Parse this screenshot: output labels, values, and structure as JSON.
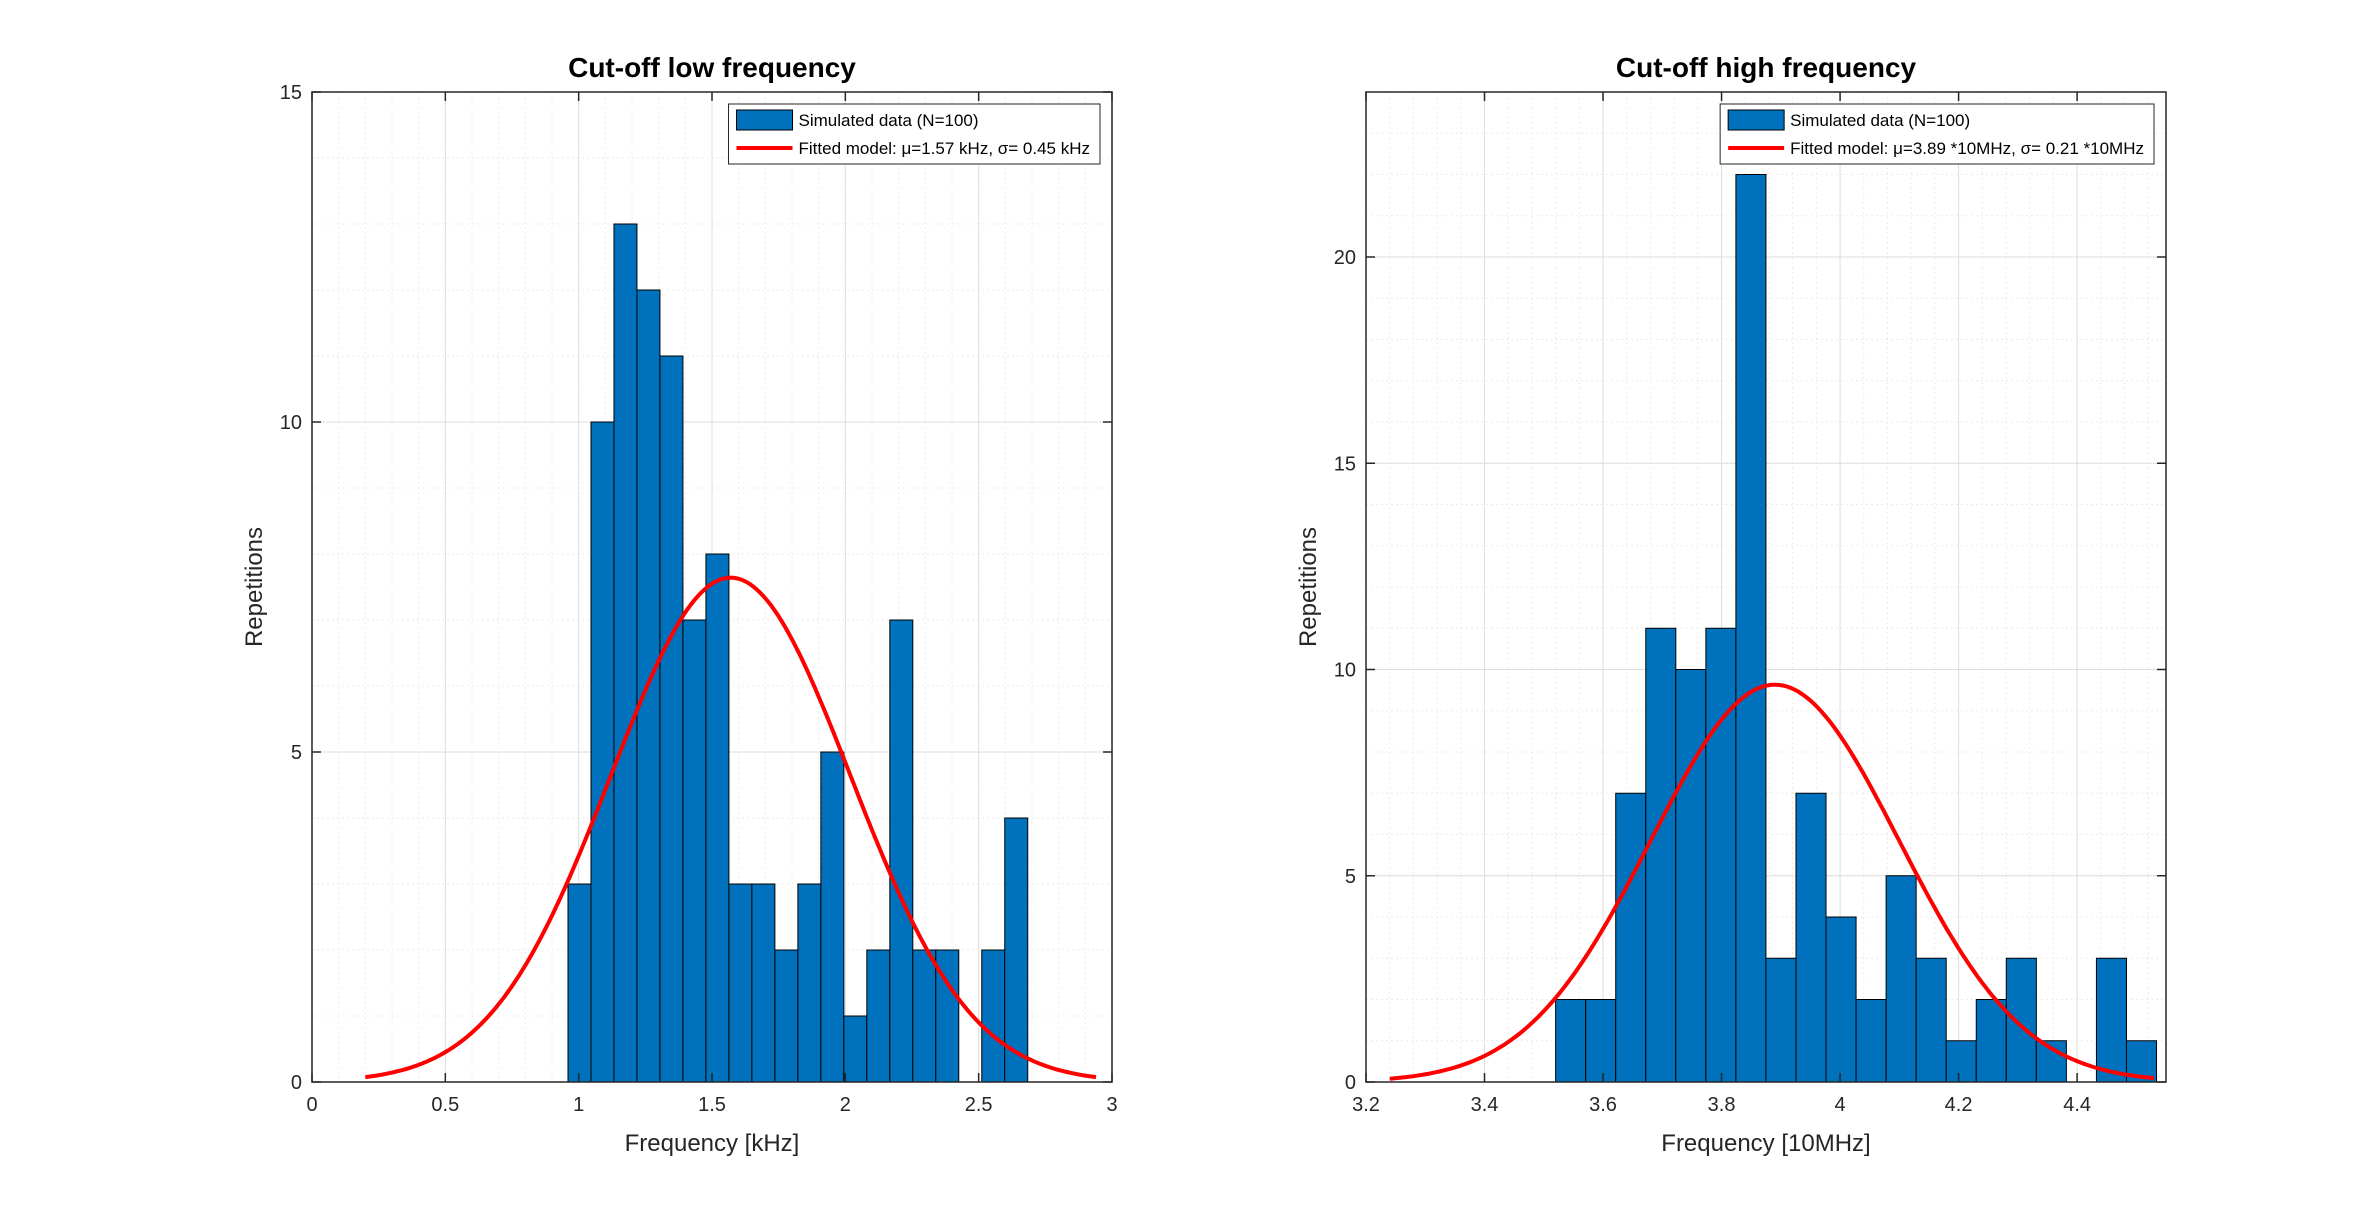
{
  "colors": {
    "bar": "#0072BD",
    "bar_edge": "#000000",
    "fit": "#FF0000",
    "grid": "#DDDDDD",
    "axis": "#262626"
  },
  "chart_data": [
    {
      "type": "bar",
      "title": "Cut-off low frequency",
      "xlabel": "Frequency [kHz]",
      "ylabel": "Repetitions",
      "xlim": [
        0,
        3
      ],
      "ylim": [
        0,
        15
      ],
      "xticks": [
        0,
        0.5,
        1,
        1.5,
        2,
        2.5,
        3
      ],
      "xtick_labels": [
        "0",
        "0.5",
        "1",
        "1.5",
        "2",
        "2.5",
        "3"
      ],
      "yticks": [
        0,
        5,
        10,
        15
      ],
      "ytick_labels": [
        "0",
        "5",
        "10",
        "15"
      ],
      "grid": true,
      "legend_position": "top-right",
      "bins": {
        "start": 0.96,
        "width": 0.0862,
        "counts": [
          3,
          10,
          13,
          12,
          11,
          7,
          8,
          3,
          3,
          2,
          3,
          5,
          1,
          2,
          7,
          2,
          2,
          0,
          2,
          4
        ]
      },
      "fit": {
        "mu": 1.57,
        "sigma": 0.45,
        "xrange": [
          0.2,
          2.94
        ]
      },
      "series": [
        {
          "name": "Simulated data (N=100)"
        },
        {
          "name": "Fitted model: μ=1.57 kHz, σ= 0.45 kHz"
        }
      ]
    },
    {
      "type": "bar",
      "title": "Cut-off high frequency",
      "xlabel": "Frequency [10MHz]",
      "ylabel": "Repetitions",
      "xlim": [
        3.2,
        4.55
      ],
      "ylim": [
        0,
        24
      ],
      "xticks": [
        3.2,
        3.4,
        3.6,
        3.8,
        4,
        4.2,
        4.4
      ],
      "xtick_labels": [
        "3.2",
        "3.4",
        "3.6",
        "3.8",
        "4",
        "4.2",
        "4.4"
      ],
      "yticks": [
        0,
        5,
        10,
        15,
        20
      ],
      "ytick_labels": [
        "0",
        "5",
        "10",
        "15",
        "20"
      ],
      "grid": true,
      "legend_position": "top-right",
      "bins": {
        "start": 3.52,
        "width": 0.0507,
        "counts": [
          2,
          2,
          7,
          11,
          10,
          11,
          22,
          3,
          7,
          4,
          2,
          5,
          3,
          1,
          2,
          3,
          1,
          0,
          3,
          1
        ]
      },
      "fit": {
        "mu": 3.89,
        "sigma": 0.21,
        "xrange": [
          3.24,
          4.53
        ]
      },
      "series": [
        {
          "name": "Simulated data (N=100)"
        },
        {
          "name": "Fitted model: μ=3.89 *10MHz, σ= 0.21 *10MHz"
        }
      ]
    }
  ]
}
